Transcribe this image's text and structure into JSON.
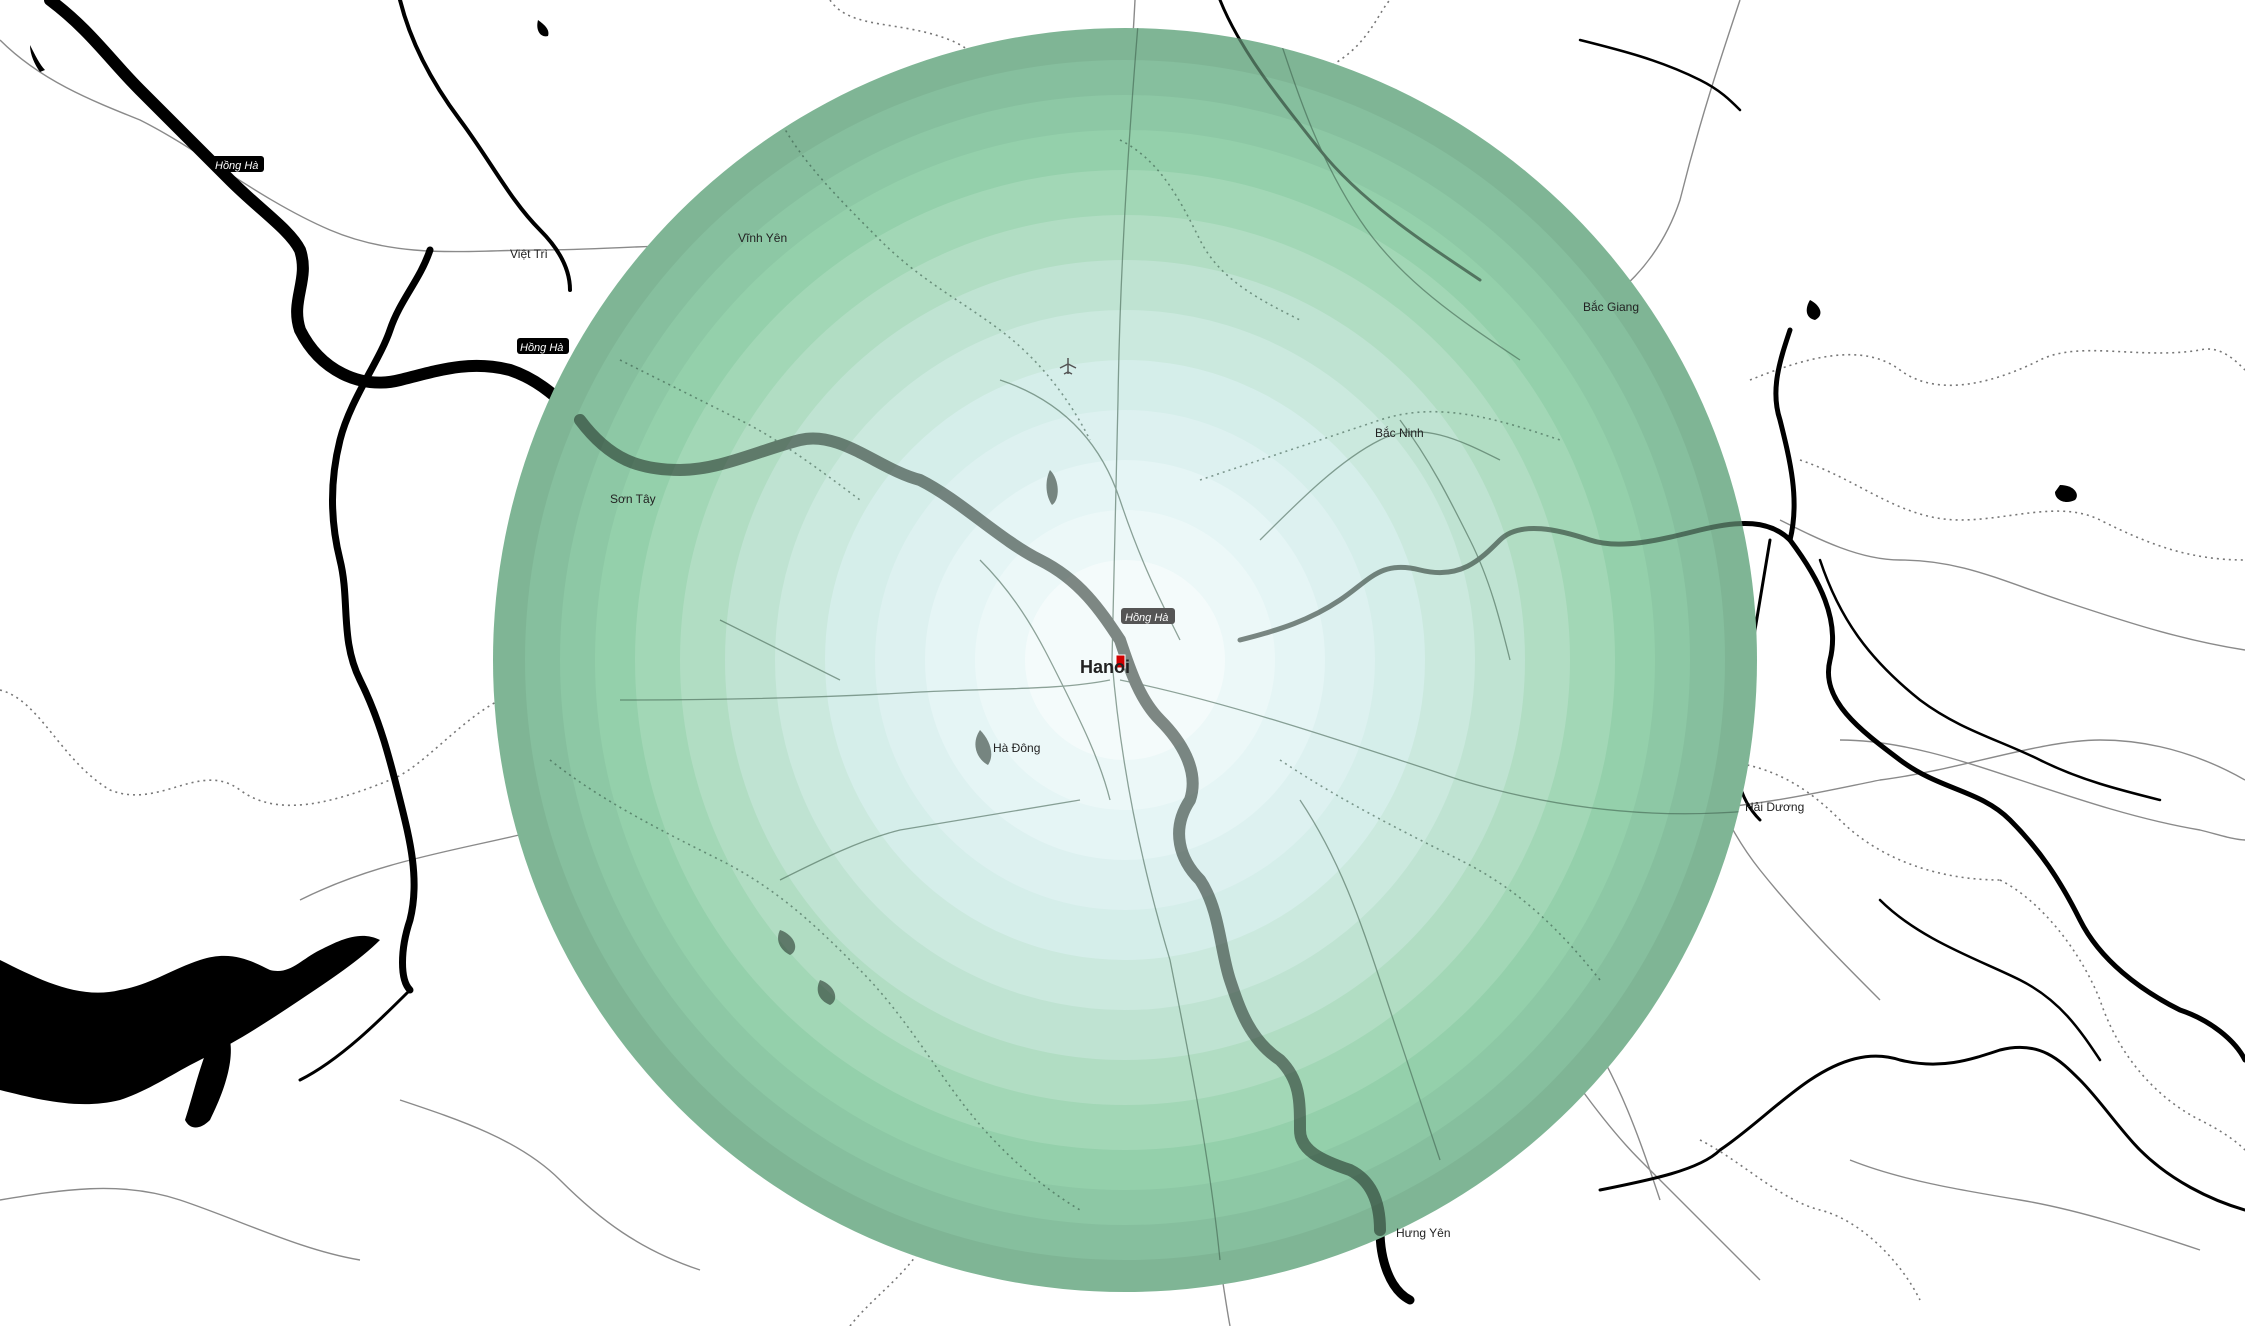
{
  "map": {
    "center_city": "Hanoi",
    "places": {
      "viet_tri": "Việt Trì",
      "vinh_yen": "Vĩnh Yên",
      "son_tay": "Sơn Tây",
      "bac_ninh": "Bắc Ninh",
      "bac_giang": "Bắc Giang",
      "ha_dong": "Hà Đông",
      "hai_duong": "Hải Dương",
      "hung_yen": "Hưng Yên"
    },
    "rivers": {
      "hong_ha": "Hồng Hà"
    },
    "colors": {
      "ring_outer": "#7fb595",
      "ring_mid": "#93cfa9",
      "ring_inner": "#e8f6f6",
      "center_marker": "#d10000",
      "water": "#000000"
    },
    "ring_count": 10,
    "icons": [
      "airport-icon",
      "location-marker-icon"
    ]
  }
}
